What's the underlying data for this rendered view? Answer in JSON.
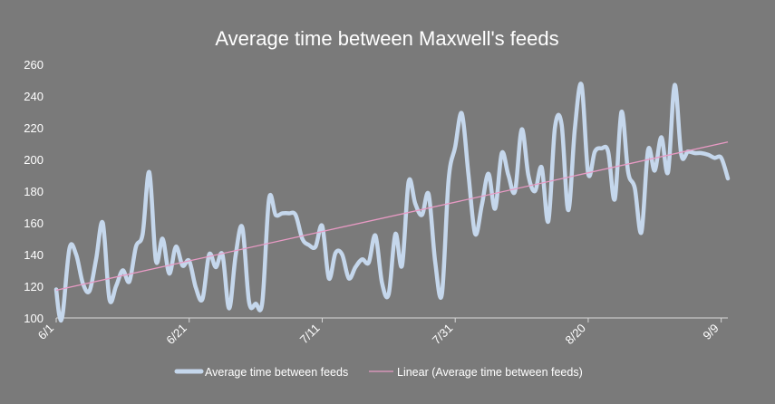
{
  "chart_data": {
    "type": "line",
    "title": "Average time between Maxwell's feeds",
    "xlabel": "",
    "ylabel": "",
    "ylim": [
      100,
      260
    ],
    "yticks": [
      100,
      120,
      140,
      160,
      180,
      200,
      220,
      240,
      260
    ],
    "x_tick_labels": [
      "6/1",
      "6/21",
      "7/11",
      "7/31",
      "8/20",
      "9/9"
    ],
    "x_tick_days": [
      0,
      20,
      40,
      60,
      80,
      100
    ],
    "x_range_days": [
      0,
      101
    ],
    "grid": false,
    "legend_position": "bottom",
    "series": [
      {
        "name": "Average time between feeds",
        "kind": "smoothed-line",
        "color": "#c5d7ec",
        "x": [
          0,
          0.5,
          1,
          2,
          3,
          4,
          5,
          6,
          7,
          8,
          9,
          10,
          11,
          12,
          13,
          14,
          15,
          16,
          17,
          18,
          19,
          20,
          21,
          22,
          23,
          24,
          25,
          26,
          27,
          28,
          29,
          30,
          31,
          32,
          33,
          34,
          35,
          36,
          37,
          38,
          39,
          40,
          41,
          42,
          43,
          44,
          45,
          46,
          47,
          48,
          49,
          50,
          51,
          52,
          53,
          54,
          55,
          56,
          57,
          58,
          59,
          60,
          61,
          62,
          63,
          64,
          65,
          66,
          67,
          68,
          69,
          70,
          71,
          72,
          73,
          74,
          75,
          76,
          77,
          78,
          79,
          80,
          81,
          82,
          83,
          84,
          85,
          86,
          87,
          88,
          89,
          90,
          91,
          92,
          93,
          94,
          95,
          96,
          97,
          98,
          99,
          100,
          101
        ],
        "y": [
          118,
          101,
          103,
          144,
          140,
          122,
          117,
          137,
          160,
          112,
          120,
          130,
          123,
          145,
          153,
          192,
          136,
          150,
          128,
          145,
          133,
          136,
          119,
          112,
          140,
          132,
          140,
          106,
          140,
          157,
          110,
          109,
          110,
          175,
          165,
          166,
          166,
          165,
          150,
          146,
          145,
          158,
          125,
          141,
          140,
          125,
          132,
          137,
          135,
          152,
          122,
          115,
          153,
          133,
          186,
          172,
          165,
          178,
          135,
          115,
          187,
          208,
          229,
          190,
          153,
          171,
          191,
          169,
          204,
          190,
          180,
          219,
          190,
          180,
          195,
          161,
          220,
          222,
          168,
          220,
          247,
          191,
          205,
          207,
          205,
          175,
          230,
          192,
          182,
          154,
          206,
          193,
          214,
          192,
          247,
          203,
          205,
          204,
          204,
          203,
          201,
          201,
          188
        ]
      },
      {
        "name": "Linear (Average time between feeds)",
        "kind": "trendline",
        "color": "#e89ac4",
        "x": [
          0,
          101
        ],
        "y": [
          117.5,
          211
        ]
      }
    ]
  }
}
